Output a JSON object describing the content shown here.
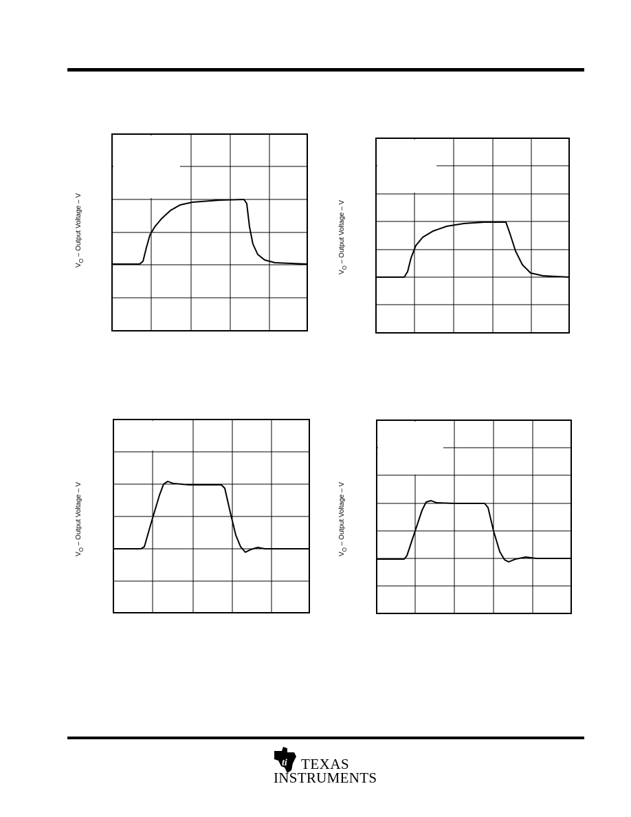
{
  "plots": [
    {
      "y_label_symbol": "V",
      "y_label_subscript": "O",
      "y_label_text": " – Output Voltage – V"
    },
    {
      "y_label_symbol": "V",
      "y_label_subscript": "O",
      "y_label_text": " – Output Voltage – V"
    },
    {
      "y_label_symbol": "V",
      "y_label_subscript": "O",
      "y_label_text": " – Output Voltage – V"
    },
    {
      "y_label_symbol": "V",
      "y_label_subscript": "O",
      "y_label_text": " – Output Voltage – V"
    }
  ],
  "footer": {
    "logo_line1": "TEXAS",
    "logo_line2": "INSTRUMENTS"
  }
}
